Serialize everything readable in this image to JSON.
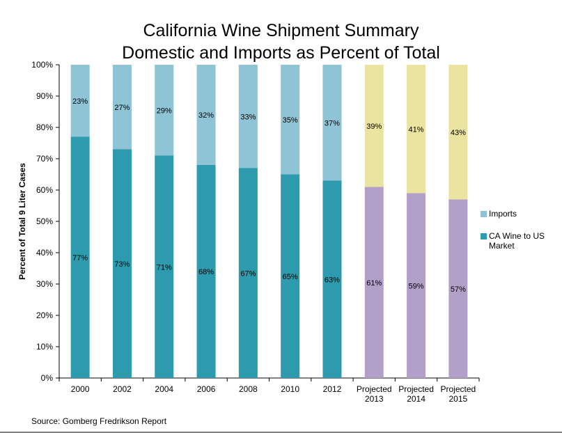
{
  "title_line1": "California Wine Shipment Summary",
  "title_line2": "Domestic and Imports as Percent of Total",
  "source": "Source: Gomberg Fredrikson Report",
  "colors": {
    "domestic": "#2e9aad",
    "imports": "#8fc3d6",
    "projected_domestic": "#b3a0c9",
    "projected_imports": "#ebe3a0"
  },
  "legend": [
    {
      "label": "Imports",
      "color": "#8fc3d6"
    },
    {
      "label": "CA Wine to US Market",
      "color": "#2e9aad"
    }
  ],
  "chart_data": {
    "type": "bar",
    "stacked": true,
    "title": "California Wine Shipment Summary Domestic and Imports as Percent of Total",
    "ylabel": "Percent of Total 9 Liter Cases",
    "xlabel": "",
    "ylim": [
      0,
      100
    ],
    "yticks": [
      "0%",
      "10%",
      "20%",
      "30%",
      "40%",
      "50%",
      "60%",
      "70%",
      "80%",
      "90%",
      "100%"
    ],
    "categories": [
      "2000",
      "2002",
      "2004",
      "2006",
      "2008",
      "2010",
      "2012",
      "Projected 2013",
      "Projected 2014",
      "Projected 2015"
    ],
    "projected": [
      false,
      false,
      false,
      false,
      false,
      false,
      false,
      true,
      true,
      true
    ],
    "series": [
      {
        "name": "CA Wine to US Market",
        "values": [
          77,
          73,
          71,
          68,
          67,
          65,
          63,
          61,
          59,
          57
        ],
        "labels": [
          "77%",
          "73%",
          "71%",
          "68%",
          "67%",
          "65%",
          "63%",
          "61%",
          "59%",
          "57%"
        ]
      },
      {
        "name": "Imports",
        "values": [
          23,
          27,
          29,
          32,
          33,
          35,
          37,
          39,
          41,
          43
        ],
        "labels": [
          "23%",
          "27%",
          "29%",
          "32%",
          "33%",
          "35%",
          "37%",
          "39%",
          "41%",
          "43%"
        ]
      }
    ],
    "grid": false,
    "legend_position": "right"
  }
}
